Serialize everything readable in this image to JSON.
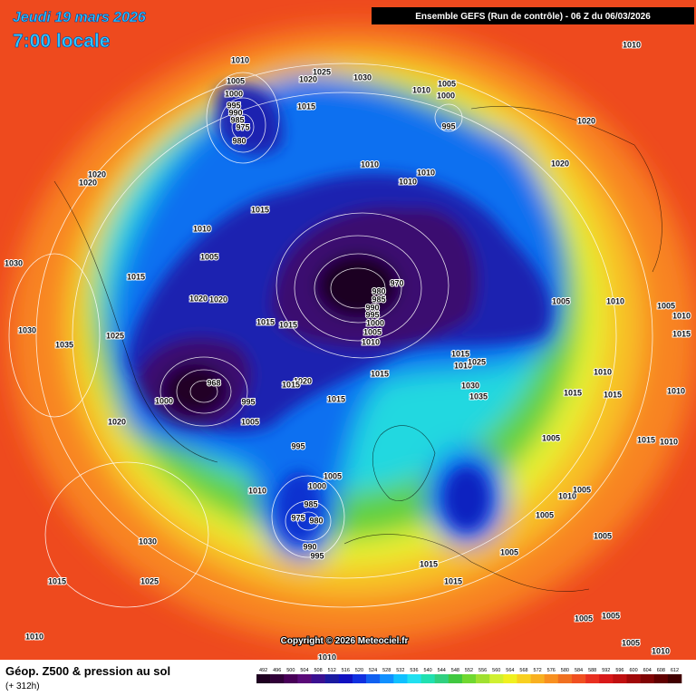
{
  "header": {
    "date": "Jeudi 19 mars 2026",
    "time": "7:00 locale",
    "run": "Ensemble GEFS  (Run de contrôle)  -  06 Z du 06/03/2026"
  },
  "footer": {
    "product": "Géop. Z500 & pression au sol",
    "lead": "(+ 312h)",
    "copyright": "Copyright © 2026 Meteociel.fr"
  },
  "legend": {
    "values": [
      492,
      496,
      500,
      504,
      508,
      512,
      516,
      520,
      524,
      528,
      532,
      536,
      540,
      544,
      548,
      552,
      556,
      560,
      564,
      568,
      572,
      576,
      580,
      584,
      588,
      592,
      596,
      600,
      604,
      608,
      612
    ],
    "colors": [
      "#1e0020",
      "#300038",
      "#480058",
      "#5a0a78",
      "#3a1090",
      "#1a1aa0",
      "#1010c0",
      "#1030e0",
      "#1060f0",
      "#1090ff",
      "#10c0ff",
      "#20e0f0",
      "#20e0b0",
      "#30d080",
      "#40c840",
      "#70d830",
      "#a0e030",
      "#d0f030",
      "#f0f020",
      "#f8d020",
      "#f8b020",
      "#f89020",
      "#f07020",
      "#f05020",
      "#e83020",
      "#d81818",
      "#c01010",
      "#a00808",
      "#800404",
      "#600000",
      "#400000"
    ]
  },
  "isobar_labels": [
    1010,
    1005,
    1000,
    995,
    990,
    985,
    975,
    980,
    1020,
    1025,
    1030,
    1015,
    1010,
    1005,
    1000,
    995,
    1010,
    1020,
    1020,
    1010,
    1010,
    1010,
    1020,
    1020,
    1015,
    1010,
    1005,
    1030,
    1015,
    1020,
    1020,
    1015,
    1015,
    980,
    970,
    985,
    990,
    995,
    1000,
    1005,
    1010,
    1005,
    1010,
    1005,
    1010,
    1015,
    1030,
    1035,
    1025,
    1015,
    1010,
    1025,
    1015,
    1020,
    1015,
    1015,
    1030,
    1035,
    995,
    968,
    1000,
    1010,
    1015,
    1015,
    1010,
    1005,
    1020,
    995,
    1005,
    1015,
    1010,
    1005,
    1000,
    1010,
    985,
    975,
    980,
    990,
    995,
    1010,
    1005,
    1005,
    1030,
    1005,
    1005,
    1015,
    1025,
    1015,
    1015,
    1010,
    1010,
    1005,
    1005,
    1005,
    1010
  ]
}
